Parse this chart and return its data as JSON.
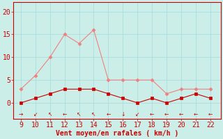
{
  "hours": [
    9,
    10,
    11,
    12,
    13,
    14,
    15,
    16,
    17,
    18,
    19,
    20,
    21,
    22
  ],
  "rafales": [
    3,
    6,
    10,
    15,
    13,
    16,
    5,
    5,
    5,
    5,
    2,
    3,
    3,
    3
  ],
  "moyen": [
    0,
    1,
    2,
    3,
    3,
    3,
    2,
    1,
    0,
    1,
    0,
    1,
    2,
    1
  ],
  "line_color_rafales": "#f08080",
  "line_color_moyen": "#cc0000",
  "bg_color": "#cceee8",
  "grid_color": "#aadddd",
  "axis_color": "#cc0000",
  "text_color": "#cc0000",
  "xlabel": "Vent moyen/en rafales ( km/h )",
  "xlabel_fontsize": 7,
  "tick_fontsize": 7,
  "ylabel_ticks": [
    0,
    5,
    10,
    15,
    20
  ],
  "ylim": [
    -3.5,
    22
  ],
  "xlim": [
    8.5,
    22.7
  ],
  "wind_symbols": [
    "→",
    "↙",
    "↖",
    "←",
    "↖",
    "↖",
    "←",
    "↓",
    "↙",
    "←",
    "←",
    "←",
    "←",
    "←"
  ]
}
